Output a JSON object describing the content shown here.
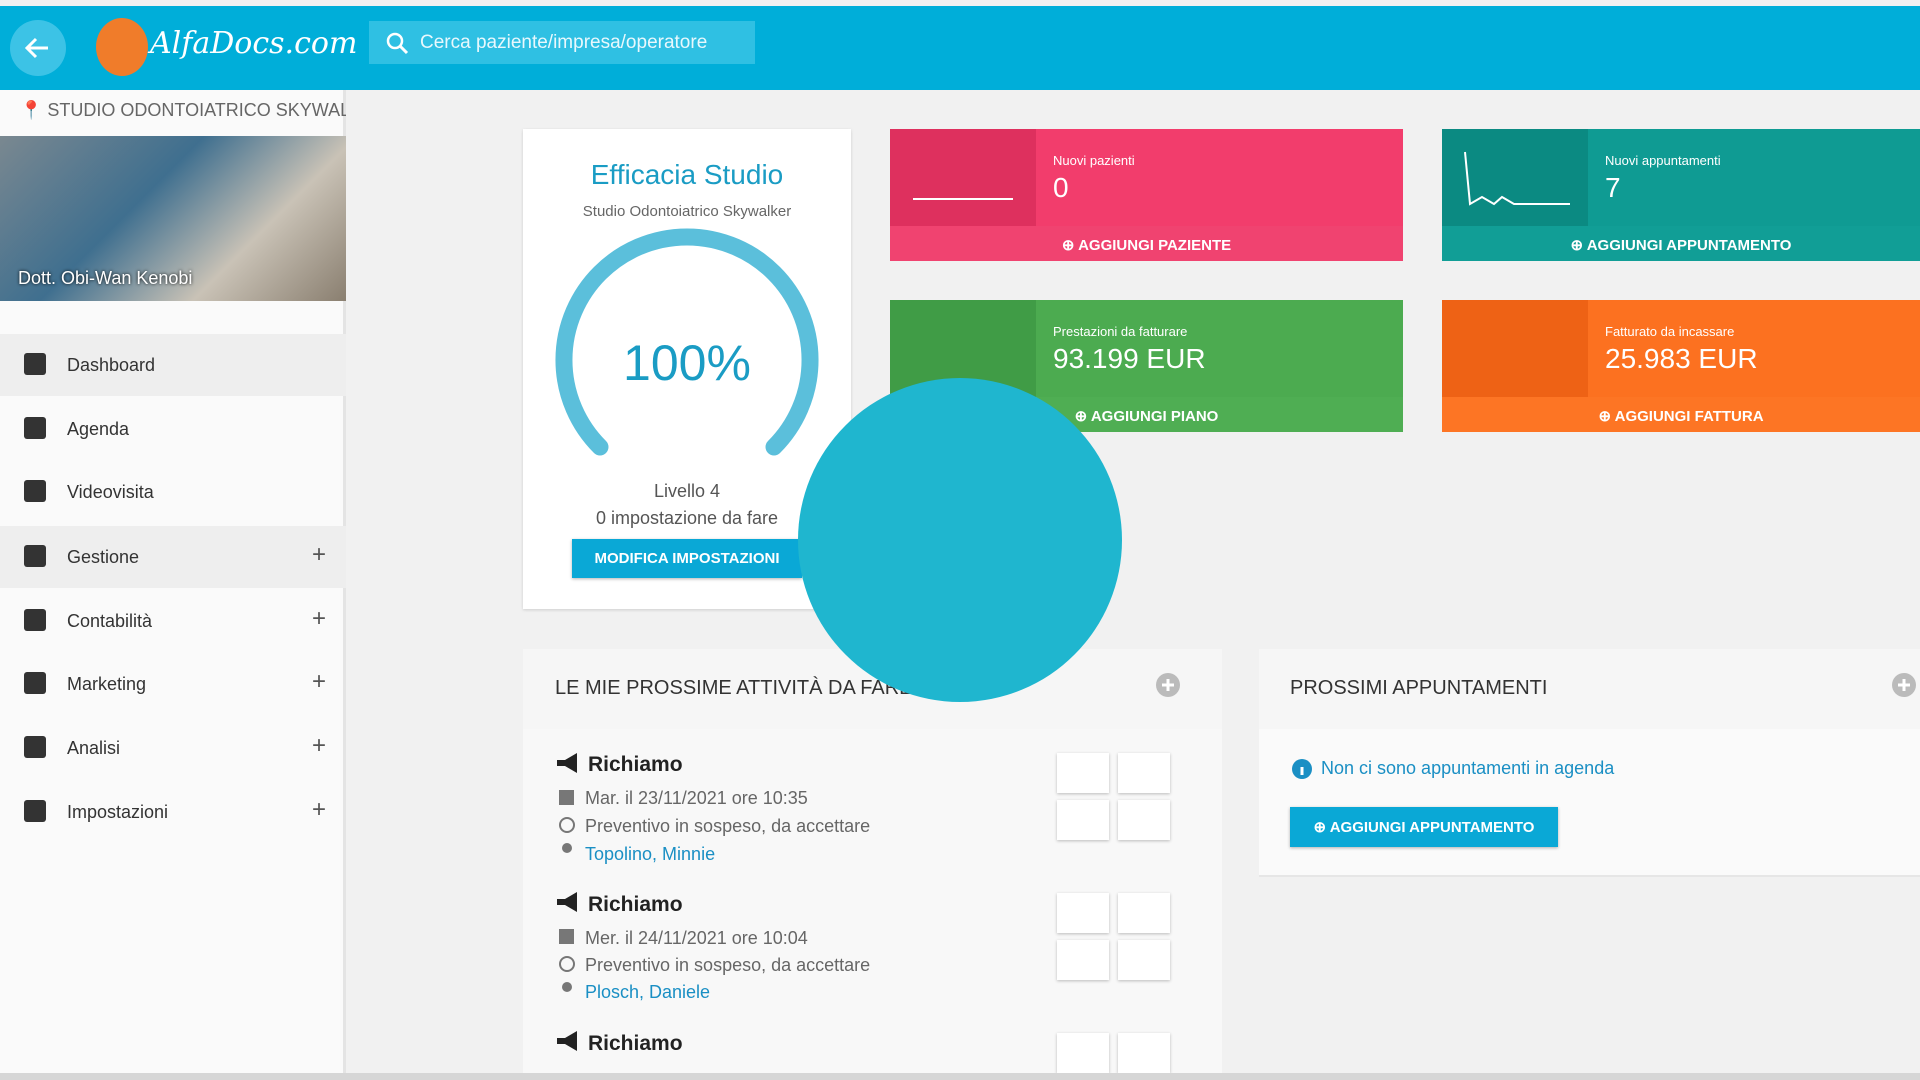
{
  "header": {
    "logo": "AlfaDocs.com",
    "search_placeholder": "Cerca paziente/impresa/operatore"
  },
  "sidebar": {
    "studio": "STUDIO ODONTOIATRICO SKYWALKER",
    "doctor": "Dott. Obi-Wan Kenobi",
    "menu": [
      "Dashboard",
      "Agenda",
      "Videovisita",
      "Gestione",
      "Contabilità",
      "Marketing",
      "Analisi",
      "Impostazioni"
    ]
  },
  "efficacy": {
    "title": "Efficacia Studio",
    "subtitle": "Studio Odontoiatrico Skywalker",
    "percent": "100%",
    "level": "Livello 4",
    "pending": "0 impostazione da fare",
    "button": "MODIFICA IMPOSTAZIONI"
  },
  "stats": [
    {
      "label": "Nuovi pazienti",
      "value": "0",
      "action": "AGGIUNGI PAZIENTE"
    },
    {
      "label": "Nuovi appuntamenti",
      "value": "7",
      "action": "AGGIUNGI APPUNTAMENTO"
    },
    {
      "label": "Prestazioni da fatturare",
      "value": "93.199 EUR",
      "action": "AGGIUNGI PIANO"
    },
    {
      "label": "Fatturato da incassare",
      "value": "25.983 EUR",
      "action": "AGGIUNGI FATTURA"
    }
  ],
  "tasks": {
    "title": "LE MIE PROSSIME ATTIVITÀ DA FARE",
    "items": [
      {
        "type": "Richiamo",
        "date": "Mar. il 23/11/2021 ore 10:35",
        "status": "Preventivo in sospeso, da accettare",
        "patient": "Topolino, Minnie"
      },
      {
        "type": "Richiamo",
        "date": "Mer. il 24/11/2021 ore 10:04",
        "status": "Preventivo in sospeso, da accettare",
        "patient": "Plosch, Daniele"
      },
      {
        "type": "Richiamo"
      }
    ]
  },
  "appointments": {
    "title": "PROSSIMI APPUNTAMENTI",
    "empty": "Non ci sono appuntamenti in agenda",
    "button": "AGGIUNGI APPUNTAMENTO"
  }
}
